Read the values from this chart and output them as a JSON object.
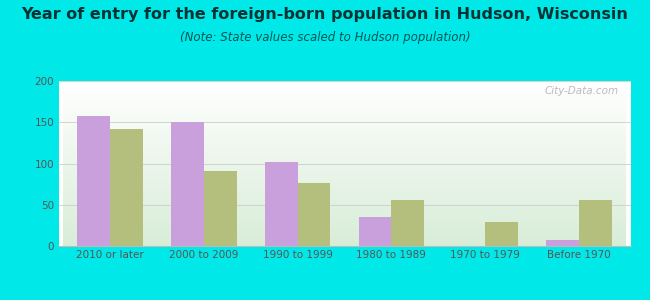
{
  "title": "Year of entry for the foreign-born population in Hudson, Wisconsin",
  "subtitle": "(Note: State values scaled to Hudson population)",
  "categories": [
    "2010 or later",
    "2000 to 2009",
    "1990 to 1999",
    "1980 to 1989",
    "1970 to 1979",
    "Before 1970"
  ],
  "hudson_values": [
    157,
    150,
    102,
    35,
    0,
    7
  ],
  "wisconsin_values": [
    142,
    91,
    76,
    56,
    29,
    56
  ],
  "hudson_color": "#c9a0dc",
  "wisconsin_color": "#b5bf7d",
  "background_outer": "#00e8e8",
  "ylim": [
    0,
    200
  ],
  "yticks": [
    0,
    50,
    100,
    150,
    200
  ],
  "bar_width": 0.35,
  "title_fontsize": 11.5,
  "subtitle_fontsize": 8.5,
  "tick_fontsize": 7.5,
  "legend_fontsize": 9,
  "watermark": "City-Data.com"
}
